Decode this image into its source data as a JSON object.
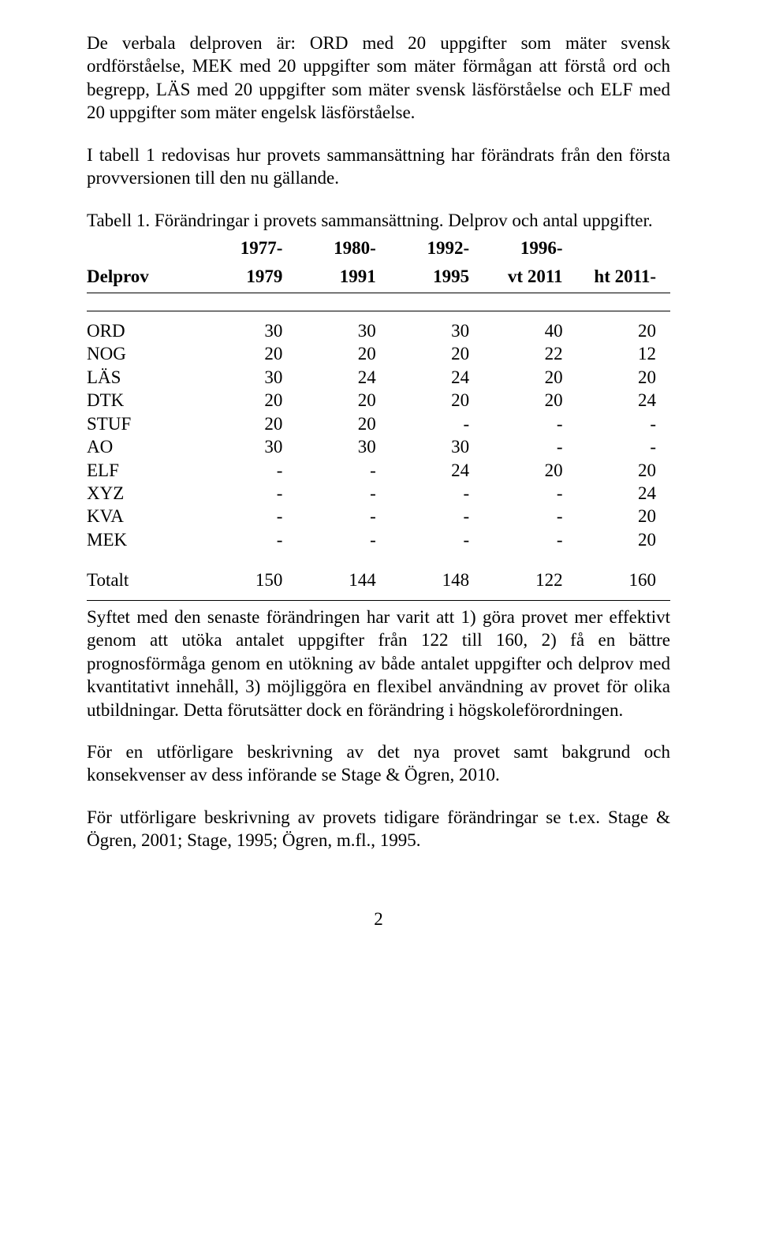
{
  "paragraphs": {
    "p1": "De verbala delproven är: ORD med 20 uppgifter som mäter svensk ordförståelse, MEK med 20 uppgifter som mäter förmågan att förstå ord och begrepp, LÄS med 20 uppgifter som mäter svensk läsförståelse och ELF med 20 uppgifter som mäter engelsk läsförståelse.",
    "p2": "I tabell 1 redovisas hur provets sammansättning har förändrats från den första provversionen till den nu gällande.",
    "caption": "Tabell 1. Förändringar i provets sammansättning. Delprov och antal uppgifter.",
    "p3": "Syftet med den senaste förändringen har varit att 1) göra provet mer effektivt genom att utöka antalet uppgifter från 122 till 160, 2) få en bättre prognosförmåga genom en utökning av både antalet uppgifter och delprov med kvantitativt innehåll, 3) möjliggöra en flexibel användning av provet för olika utbildningar. Detta förutsätter dock en förändring i högskoleförordningen.",
    "p4": "För en utförligare beskrivning av det nya provet samt bakgrund och konsekvenser av dess införande se Stage & Ögren, 2010.",
    "p5": "För utförligare beskrivning av provets tidigare förändringar se t.ex. Stage & Ögren, 2001; Stage, 1995; Ögren, m.fl., 1995."
  },
  "table": {
    "headers": {
      "c0": "Delprov",
      "c1a": "1977-",
      "c1b": "1979",
      "c2a": "1980-",
      "c2b": "1991",
      "c3a": "1992-",
      "c3b": "1995",
      "c4a": "1996-",
      "c4b": "vt 2011",
      "c5": "ht 2011-"
    },
    "rows": [
      {
        "label": "ORD",
        "v": [
          "30",
          "30",
          "30",
          "40",
          "20"
        ]
      },
      {
        "label": "NOG",
        "v": [
          "20",
          "20",
          "20",
          "22",
          "12"
        ]
      },
      {
        "label": "LÄS",
        "v": [
          "30",
          "24",
          "24",
          "20",
          "20"
        ]
      },
      {
        "label": "DTK",
        "v": [
          "20",
          "20",
          "20",
          "20",
          "24"
        ]
      },
      {
        "label": "STUF",
        "v": [
          "20",
          "20",
          "-",
          "-",
          "-"
        ]
      },
      {
        "label": "AO",
        "v": [
          "30",
          "30",
          "30",
          "-",
          "-"
        ]
      },
      {
        "label": "ELF",
        "v": [
          "-",
          "-",
          "24",
          "20",
          "20"
        ]
      },
      {
        "label": "XYZ",
        "v": [
          "-",
          "-",
          "-",
          "-",
          "24"
        ]
      },
      {
        "label": "KVA",
        "v": [
          "-",
          "-",
          "-",
          "-",
          "20"
        ]
      },
      {
        "label": "MEK",
        "v": [
          "-",
          "-",
          "-",
          "-",
          "20"
        ]
      }
    ],
    "total": {
      "label": "Totalt",
      "v": [
        "150",
        "144",
        "148",
        "122",
        "160"
      ]
    }
  },
  "page_number": "2"
}
